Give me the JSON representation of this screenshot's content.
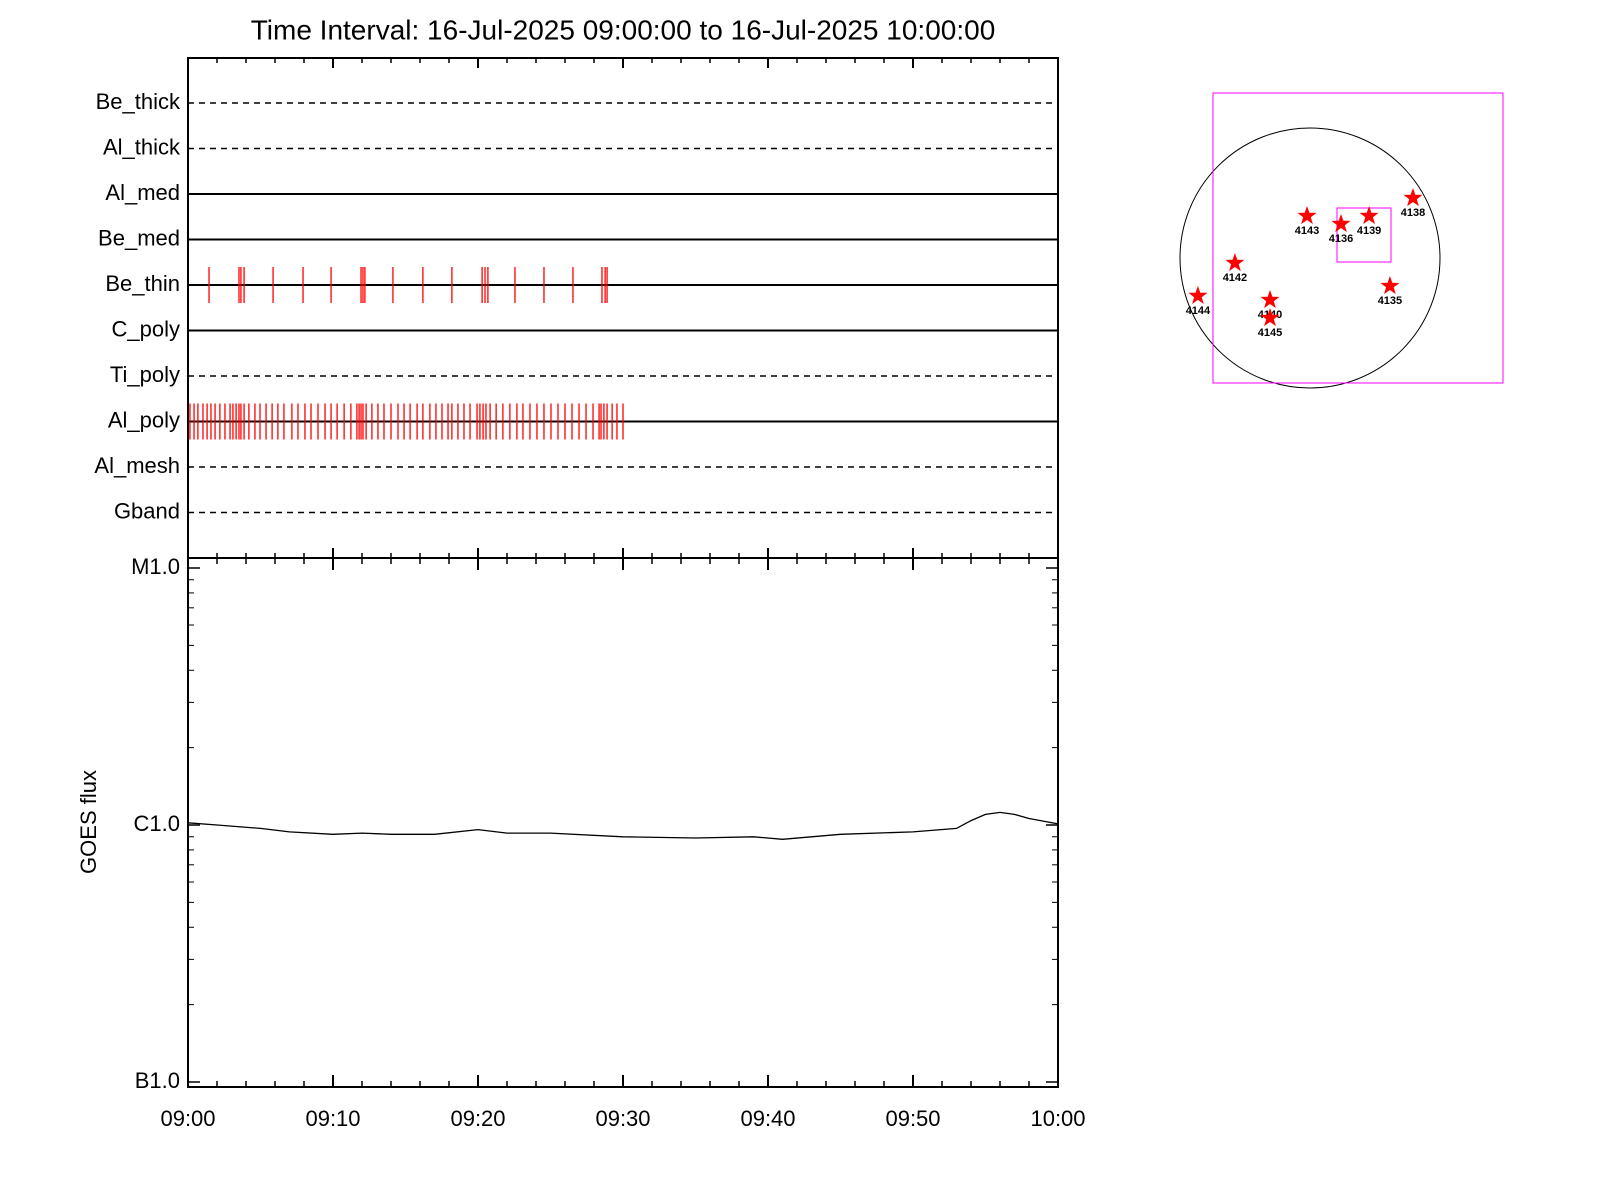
{
  "chart_data": [
    {
      "type": "event",
      "title": "Time Interval: 16-Jul-2025 09:00:00 to 16-Jul-2025 10:00:00",
      "color": "#ff0000",
      "xlim": [
        "09:00",
        "10:00"
      ],
      "series": [
        {
          "name": "Be_thick",
          "line": "dashed",
          "times": []
        },
        {
          "name": "Al_thick",
          "line": "dashed",
          "times": []
        },
        {
          "name": "Al_med",
          "line": "solid",
          "times": []
        },
        {
          "name": "Be_med",
          "line": "solid",
          "times": []
        },
        {
          "name": "Be_thin",
          "line": "solid",
          "times": [
            "09:01:27",
            "09:03:31",
            "09:03:39",
            "09:03:52",
            "09:05:52",
            "09:07:56",
            "09:09:52",
            "09:11:56",
            "09:12:04",
            "09:12:12",
            "09:14:08",
            "09:16:12",
            "09:18:12",
            "09:20:17",
            "09:20:29",
            "09:20:41",
            "09:22:33",
            "09:24:33",
            "09:26:33",
            "09:28:33",
            "09:28:46",
            "09:28:54"
          ]
        },
        {
          "name": "C_poly",
          "line": "solid",
          "times": []
        },
        {
          "name": "Ti_poly",
          "line": "dashed",
          "times": []
        },
        {
          "name": "Al_poly",
          "line": "solid",
          "times": [
            "09:00:08",
            "09:00:25",
            "09:00:41",
            "09:01:02",
            "09:01:19",
            "09:01:35",
            "09:01:52",
            "09:02:12",
            "09:02:33",
            "09:02:54",
            "09:03:06",
            "09:03:19",
            "09:03:31",
            "09:03:39",
            "09:03:52",
            "09:04:12",
            "09:04:37",
            "09:04:58",
            "09:05:23",
            "09:05:48",
            "09:06:12",
            "09:06:37",
            "09:07:10",
            "09:07:35",
            "09:08:04",
            "09:08:29",
            "09:08:58",
            "09:09:27",
            "09:09:52",
            "09:10:17",
            "09:10:46",
            "09:11:14",
            "09:11:39",
            "09:11:48",
            "09:11:56",
            "09:12:04",
            "09:12:17",
            "09:12:41",
            "09:13:06",
            "09:13:31",
            "09:14:00",
            "09:14:29",
            "09:14:54",
            "09:15:19",
            "09:15:48",
            "09:16:12",
            "09:16:41",
            "09:17:06",
            "09:17:31",
            "09:17:56",
            "09:18:12",
            "09:18:37",
            "09:19:02",
            "09:19:27",
            "09:19:56",
            "09:20:08",
            "09:20:21",
            "09:20:33",
            "09:20:50",
            "09:21:15",
            "09:21:43",
            "09:22:12",
            "09:22:41",
            "09:23:06",
            "09:23:35",
            "09:24:04",
            "09:24:33",
            "09:25:02",
            "09:25:31",
            "09:26:00",
            "09:26:29",
            "09:26:58",
            "09:27:27",
            "09:27:56",
            "09:28:21",
            "09:28:29",
            "09:28:41",
            "09:28:54",
            "09:29:15",
            "09:29:35",
            "09:30:00"
          ]
        },
        {
          "name": "Al_mesh",
          "line": "dashed",
          "times": []
        },
        {
          "name": "Gband",
          "line": "dashed",
          "times": []
        }
      ]
    },
    {
      "type": "line",
      "ylabel": "GOES flux",
      "color": "#000000",
      "log_scale": true,
      "x": [
        "09:00",
        "09:02",
        "09:05",
        "09:07",
        "09:10",
        "09:12",
        "09:14",
        "09:17",
        "09:20",
        "09:22",
        "09:25",
        "09:30",
        "09:35",
        "09:39",
        "09:41",
        "09:45",
        "09:50",
        "09:53",
        "09:54",
        "09:55",
        "09:56",
        "09:57",
        "09:58",
        "10:00"
      ],
      "values": [
        1.02e-06,
        1e-06,
        9.7e-07,
        9.4e-07,
        9.2e-07,
        9.3e-07,
        9.2e-07,
        9.2e-07,
        9.6e-07,
        9.3e-07,
        9.3e-07,
        9e-07,
        8.9e-07,
        9e-07,
        8.8e-07,
        9.2e-07,
        9.4e-07,
        9.7e-07,
        1.04e-06,
        1.1e-06,
        1.12e-06,
        1.1e-06,
        1.06e-06,
        1.01e-06
      ],
      "xlim": [
        "09:00",
        "10:00"
      ],
      "xticks": [
        "09:00",
        "09:10",
        "09:20",
        "09:30",
        "09:40",
        "09:50",
        "10:00"
      ],
      "xminorticks": [
        "09:02",
        "09:04",
        "09:06",
        "09:08",
        "09:12",
        "09:14",
        "09:16",
        "09:18",
        "09:22",
        "09:24",
        "09:26",
        "09:28",
        "09:32",
        "09:34",
        "09:36",
        "09:38",
        "09:42",
        "09:44",
        "09:46",
        "09:48",
        "09:52",
        "09:54",
        "09:56",
        "09:58"
      ],
      "ylim": [
        1e-07,
        1e-05
      ],
      "yticks": [
        {
          "value": 1e-07,
          "label": "B1.0"
        },
        {
          "value": 1e-06,
          "label": "C1.0"
        },
        {
          "value": 1e-05,
          "label": "M1.0"
        }
      ],
      "yminorticks": [
        2e-07,
        3e-07,
        4e-07,
        5e-07,
        6e-07,
        7e-07,
        8e-07,
        9e-07,
        2e-06,
        3e-06,
        4e-06,
        5e-06,
        6e-06,
        7e-06,
        8e-06,
        9e-06
      ]
    },
    {
      "type": "scatter",
      "color": "#ff0000",
      "labels": [
        "4143",
        "4136",
        "4139",
        "4138",
        "4142",
        "4135",
        "4144",
        "4140",
        "4145"
      ],
      "x": [
        -22,
        229,
        436,
        760,
        -554,
        590,
        -827,
        -295,
        -295
      ],
      "y": [
        310,
        251,
        310,
        443,
        -37,
        -207,
        -280,
        -310,
        -443
      ]
    }
  ]
}
